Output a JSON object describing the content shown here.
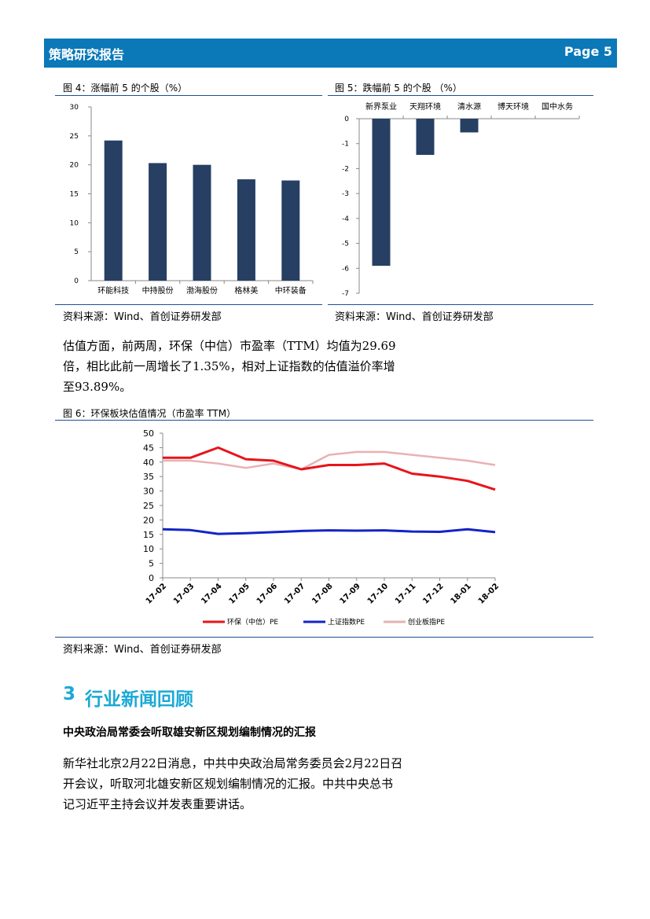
{
  "header": {
    "title": "策略研究报告",
    "page": "Page 5"
  },
  "fig4": {
    "title": "图 4：涨幅前 5 的个股（%）",
    "source": "资料来源：Wind、首创证券研发部",
    "chart_data": {
      "type": "bar",
      "categories": [
        "环能科技",
        "中持股份",
        "渤海股份",
        "格林美",
        "中环装备"
      ],
      "values": [
        24.2,
        20.3,
        20.0,
        17.5,
        17.3
      ],
      "ylim": [
        0,
        30
      ],
      "yticks": [
        0,
        5,
        10,
        15,
        20,
        25,
        30
      ],
      "color": "#263f63"
    }
  },
  "fig5": {
    "title": "图 5：跌幅前 5 的个股 （%）",
    "source": "资料来源：Wind、首创证券研发部",
    "chart_data": {
      "type": "bar",
      "categories": [
        "新界泵业",
        "天翔环境",
        "清水源",
        "博天环境",
        "国中水务"
      ],
      "values": [
        -5.9,
        -1.45,
        -0.55,
        0,
        0
      ],
      "ylim": [
        -7,
        0
      ],
      "yticks": [
        0,
        -1,
        -2,
        -3,
        -4,
        -5,
        -6,
        -7
      ],
      "color": "#263f63"
    }
  },
  "paragraph1": {
    "lines": [
      "估值方面，前两周，环保（中信）市盈率（TTM）均值为29.69",
      "倍，相比此前一周增长了1.35%，相对上证指数的估值溢价率增",
      "至93.89%。"
    ]
  },
  "fig6": {
    "title": "图 6：环保板块估值情况（市盈率 TTM）",
    "source": "资料来源：Wind、首创证券研发部",
    "chart_data": {
      "type": "line",
      "x": [
        "17-02",
        "17-03",
        "17-04",
        "17-05",
        "17-06",
        "17-07",
        "17-08",
        "17-09",
        "17-10",
        "17-11",
        "17-12",
        "18-01",
        "18-02"
      ],
      "ylim": [
        0,
        50
      ],
      "yticks": [
        0,
        5,
        10,
        15,
        20,
        25,
        30,
        35,
        40,
        45,
        50
      ],
      "series": [
        {
          "name": "环保（中信）PE",
          "color": "#e8141a",
          "values": [
            41.5,
            41.5,
            45.0,
            41.0,
            40.5,
            37.5,
            39.0,
            39.0,
            39.5,
            36.0,
            35.0,
            33.5,
            30.5
          ]
        },
        {
          "name": "上证指数PE",
          "color": "#1423c8",
          "values": [
            16.8,
            16.5,
            15.2,
            15.4,
            15.8,
            16.2,
            16.4,
            16.3,
            16.4,
            16.0,
            15.9,
            16.8,
            15.8
          ]
        },
        {
          "name": "创业板指PE",
          "color": "#e9b1b3",
          "values": [
            40.5,
            40.5,
            39.5,
            38.0,
            39.5,
            37.5,
            42.5,
            43.5,
            43.5,
            42.5,
            41.5,
            40.5,
            39.0
          ]
        }
      ]
    }
  },
  "section": {
    "number": "3",
    "title": "行业新闻回顾"
  },
  "news": {
    "title": "中央政治局常委会听取雄安新区规划编制情况的汇报",
    "lines": [
      "新华社北京2月22日消息，中共中央政治局常务委员会2月22日召",
      "开会议，听取河北雄安新区规划编制情况的汇报。中共中央总书",
      "记习近平主持会议并发表重要讲话。"
    ]
  }
}
